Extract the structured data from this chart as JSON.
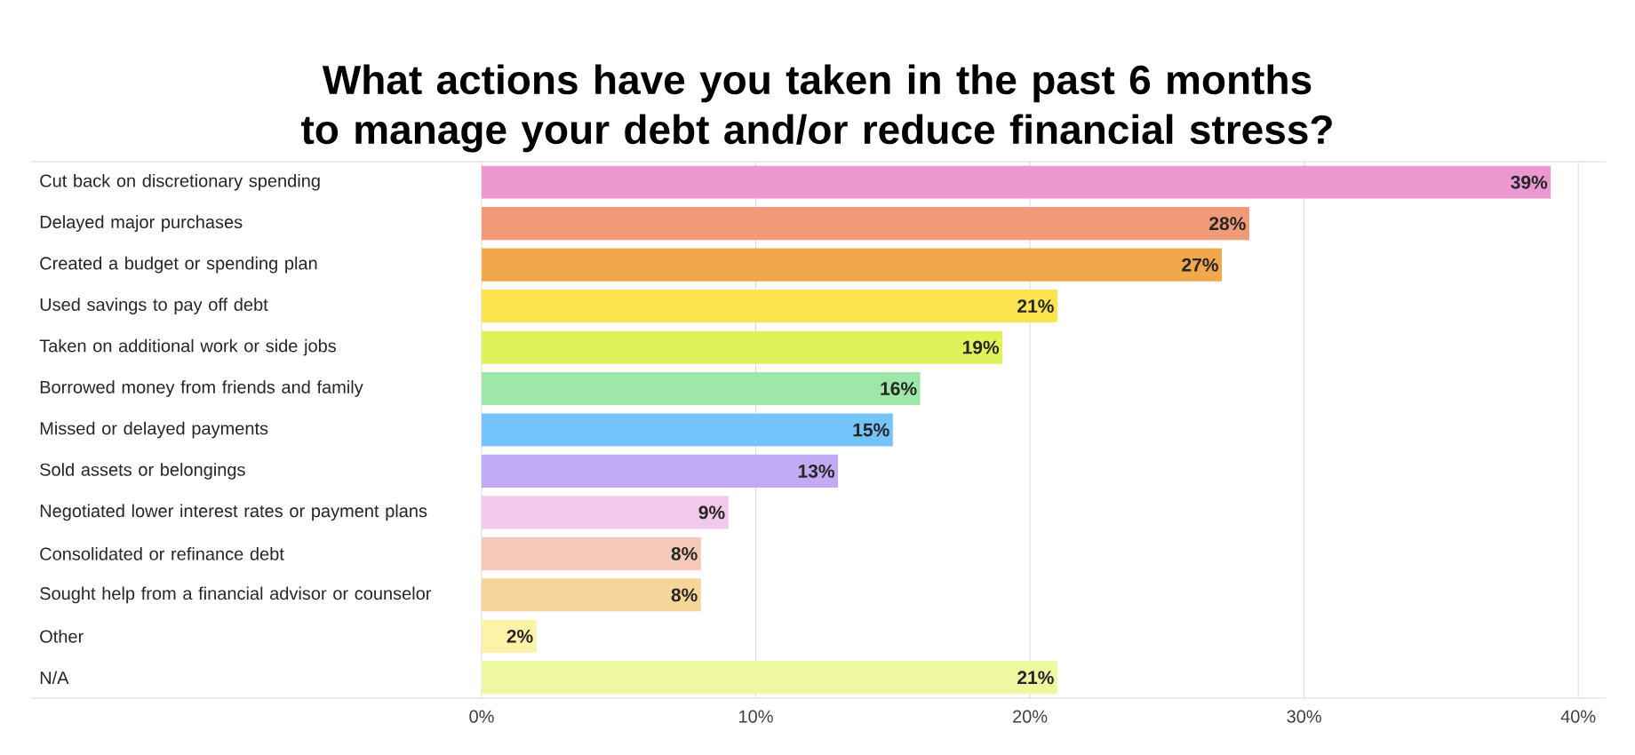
{
  "chart_data": {
    "type": "bar",
    "orientation": "horizontal",
    "title": "What actions have you taken in the past 6 months to manage your debt and/or reduce financial stress?",
    "categories": [
      "Cut back on discretionary spending",
      "Delayed major purchases",
      "Created a budget or spending plan",
      "Used savings to pay off debt",
      "Taken on additional work or side jobs",
      "Borrowed money from friends and family",
      "Missed or delayed payments",
      "Sold assets or belongings",
      "Negotiated lower interest rates or payment plans",
      "Consolidated or refinance debt",
      "Sought help from a financial advisor or counselor",
      "Other",
      "N/A"
    ],
    "values": [
      39,
      28,
      27,
      21,
      19,
      16,
      15,
      13,
      9,
      8,
      8,
      2,
      21
    ],
    "value_labels": [
      "39%",
      "28%",
      "27%",
      "21%",
      "19%",
      "16%",
      "15%",
      "13%",
      "9%",
      "8%",
      "8%",
      "2%",
      "21%"
    ],
    "colors": [
      "#ec98d0",
      "#f09a78",
      "#f2a74a",
      "#fce350",
      "#dff25a",
      "#9de8a8",
      "#74c3fa",
      "#c3aaf5",
      "#f2c8ec",
      "#f6c8b8",
      "#f7d49a",
      "#fdf3a8",
      "#eef8a0"
    ],
    "xlim": [
      0,
      41
    ],
    "xticks": [
      {
        "value": 0,
        "label": "0%"
      },
      {
        "value": 10,
        "label": "10%"
      },
      {
        "value": 20,
        "label": "20%"
      },
      {
        "value": 30,
        "label": "30%"
      },
      {
        "value": 40,
        "label": "40%"
      }
    ],
    "grid": "x"
  }
}
